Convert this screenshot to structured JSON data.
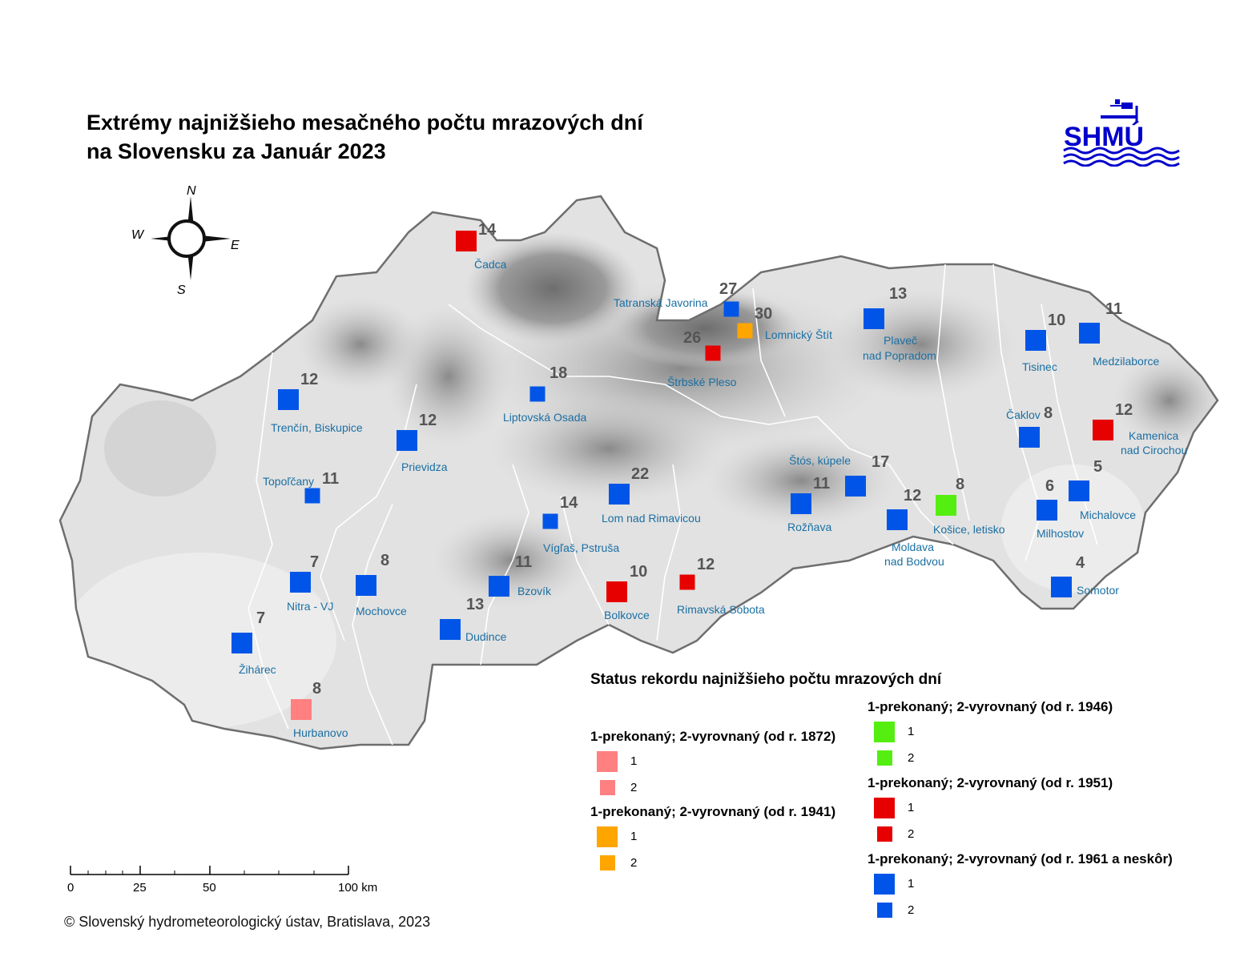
{
  "title": {
    "line1": "Extrémy najnižšieho mesačného počtu mrazových dní",
    "line2": "na Slovensku za Január 2023"
  },
  "logo": {
    "text": "SHMÚ",
    "color": "#0000cc"
  },
  "compass": {
    "n": "N",
    "e": "E",
    "s": "S",
    "w": "W"
  },
  "colors": {
    "1872": "#ff8080",
    "1941": "#ffa500",
    "1946": "#55ee11",
    "1951": "#e60000",
    "1961": "#0055e8"
  },
  "stations": [
    {
      "name": "Čadca",
      "value": "14",
      "period": "1951",
      "status": 1
    },
    {
      "name": "Tatranská Javorina",
      "value": "27",
      "period": "1961",
      "status": 2
    },
    {
      "name": "Lomnický Štít",
      "value": "30",
      "period": "1941",
      "status": 2
    },
    {
      "name": "Štrbské Pleso",
      "value": "26",
      "period": "1951",
      "status": 2
    },
    {
      "name": "Plaveč nad Popradom",
      "value": "13",
      "period": "1961",
      "status": 1
    },
    {
      "name": "Tisinec",
      "value": "10",
      "period": "1961",
      "status": 1
    },
    {
      "name": "Medzilaborce",
      "value": "11",
      "period": "1961",
      "status": 1
    },
    {
      "name": "Trenčín, Biskupice",
      "value": "12",
      "period": "1961",
      "status": 1
    },
    {
      "name": "Liptovská Osada",
      "value": "18",
      "period": "1961",
      "status": 2
    },
    {
      "name": "Prievidza",
      "value": "12",
      "period": "1961",
      "status": 1
    },
    {
      "name": "Čaklov",
      "value": "8",
      "period": "1961",
      "status": 1
    },
    {
      "name": "Kamenica nad Cirochou",
      "value": "12",
      "period": "1951",
      "status": 1
    },
    {
      "name": "Topoľčany",
      "value": "11",
      "period": "1961",
      "status": 2
    },
    {
      "name": "Lom nad Rimavicou",
      "value": "22",
      "period": "1961",
      "status": 1
    },
    {
      "name": "Štós, kúpele",
      "value": "17",
      "period": "1961",
      "status": 1
    },
    {
      "name": "Rožňava",
      "value": "11",
      "period": "1961",
      "status": 1
    },
    {
      "name": "Košice, letisko",
      "value": "8",
      "period": "1946",
      "status": 1
    },
    {
      "name": "Moldava nad Bodvou",
      "value": "12",
      "period": "1961",
      "status": 1
    },
    {
      "name": "Michalovce",
      "value": "5",
      "period": "1961",
      "status": 1
    },
    {
      "name": "Milhostov",
      "value": "6",
      "period": "1961",
      "status": 1
    },
    {
      "name": "Vígľaš, Pstruša",
      "value": "14",
      "period": "1961",
      "status": 2
    },
    {
      "name": "Nitra - VJ",
      "value": "7",
      "period": "1961",
      "status": 1
    },
    {
      "name": "Mochovce",
      "value": "8",
      "period": "1961",
      "status": 1
    },
    {
      "name": "Bzovík",
      "value": "11",
      "period": "1961",
      "status": 1
    },
    {
      "name": "Bolkovce",
      "value": "10",
      "period": "1951",
      "status": 1
    },
    {
      "name": "Rimavská Sobota",
      "value": "12",
      "period": "1951",
      "status": 2
    },
    {
      "name": "Somotor",
      "value": "4",
      "period": "1961",
      "status": 1
    },
    {
      "name": "Dudince",
      "value": "13",
      "period": "1961",
      "status": 1
    },
    {
      "name": "Žihárec",
      "value": "7",
      "period": "1961",
      "status": 1
    },
    {
      "name": "Hurbanovo",
      "value": "8",
      "period": "1872",
      "status": 1
    }
  ],
  "legend": {
    "title": "Status rekordu najnižšieho počtu mrazových dní",
    "groups": [
      {
        "period": "1872",
        "heading": "1-prekonaný; 2-vyrovnaný (od r. 1872)",
        "label1": "1",
        "label2": "2"
      },
      {
        "period": "1941",
        "heading": "1-prekonaný; 2-vyrovnaný (od r. 1941)",
        "label1": "1",
        "label2": "2"
      },
      {
        "period": "1946",
        "heading": "1-prekonaný; 2-vyrovnaný (od r. 1946)",
        "label1": "1",
        "label2": "2"
      },
      {
        "period": "1951",
        "heading": "1-prekonaný; 2-vyrovnaný (od r. 1951)",
        "label1": "1",
        "label2": "2"
      },
      {
        "period": "1961",
        "heading": "1-prekonaný; 2-vyrovnaný (od r. 1961 a neskôr)",
        "label1": "1",
        "label2": "2"
      }
    ]
  },
  "scale_bar": {
    "labels": [
      "0",
      "25",
      "50",
      "100 km"
    ]
  },
  "copyright": "© Slovenský hydrometeorologický ústav, Bratislava, 2023"
}
